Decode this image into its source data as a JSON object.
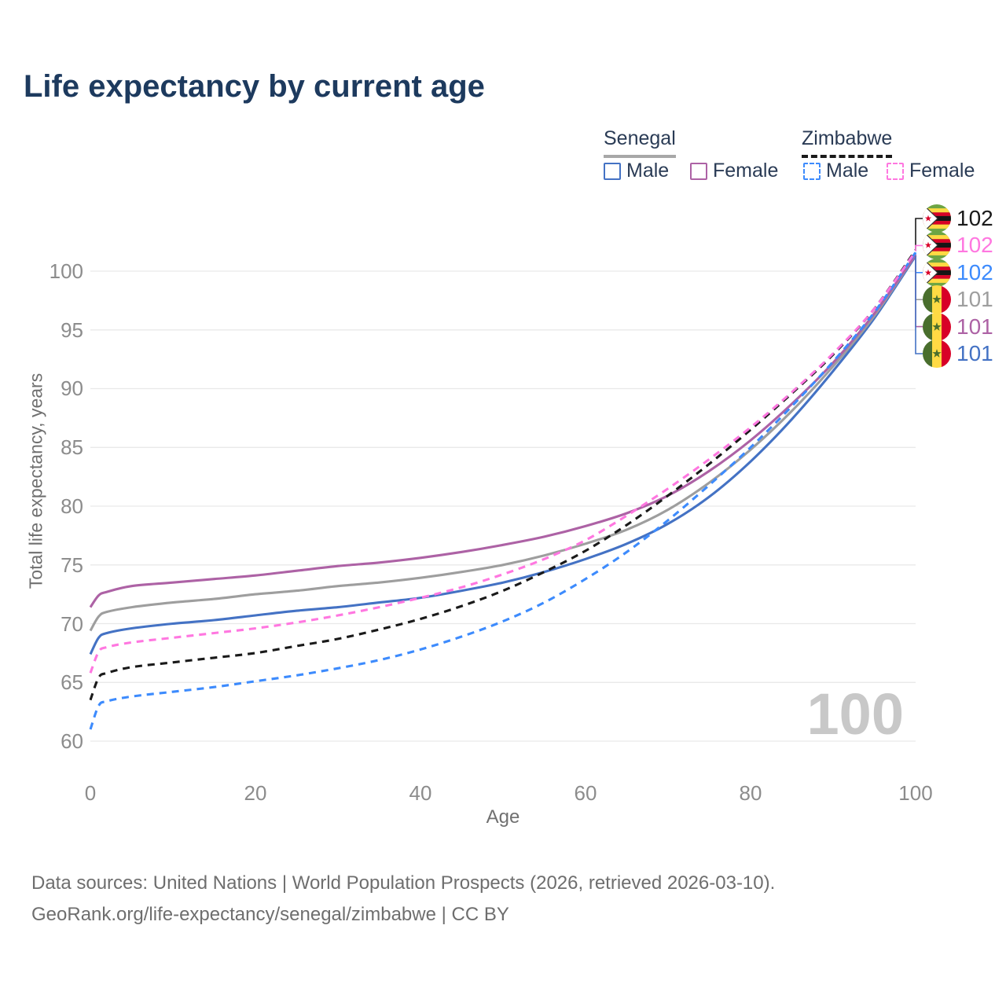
{
  "title": "Life expectancy by current age",
  "legend": {
    "groups": [
      {
        "name": "Senegal",
        "line_style": "solid",
        "items": [
          {
            "label": "Male",
            "color": "#4472c4"
          },
          {
            "label": "Female",
            "color": "#ad62a5"
          }
        ]
      },
      {
        "name": "Zimbabwe",
        "line_style": "dashed",
        "items": [
          {
            "label": "Male",
            "color": "#3d8bfd"
          },
          {
            "label": "Female",
            "color": "#ff77e0"
          }
        ]
      }
    ]
  },
  "watermark": "100",
  "end_labels": [
    {
      "value": "102",
      "color": "#1a1a1a",
      "flag": "zimbabwe"
    },
    {
      "value": "102",
      "color": "#ff77e0",
      "flag": "zimbabwe"
    },
    {
      "value": "102",
      "color": "#3d8bfd",
      "flag": "zimbabwe"
    },
    {
      "value": "101",
      "color": "#9e9e9e",
      "flag": "senegal"
    },
    {
      "value": "101",
      "color": "#ad62a5",
      "flag": "senegal"
    },
    {
      "value": "101",
      "color": "#4472c4",
      "flag": "senegal"
    }
  ],
  "footer": {
    "line1": "Data sources: United Nations | World Population Prospects (2026, retrieved 2026-03-10).",
    "line2": "GeoRank.org/life-expectancy/senegal/zimbabwe | CC BY"
  },
  "chart_data": {
    "type": "line",
    "title": "Life expectancy by current age",
    "xlabel": "Age",
    "ylabel": "Total life expectancy, years",
    "xlim": [
      0,
      100
    ],
    "ylim": [
      60,
      100
    ],
    "grid": "horizontal",
    "legend_position": "top-right",
    "x_ticks": [
      0,
      20,
      40,
      60,
      80,
      100
    ],
    "y_ticks": [
      60,
      65,
      70,
      75,
      80,
      85,
      90,
      95,
      100
    ],
    "x": [
      0,
      1,
      2,
      5,
      10,
      15,
      20,
      25,
      30,
      35,
      40,
      45,
      50,
      55,
      60,
      65,
      70,
      75,
      80,
      85,
      90,
      95,
      100
    ],
    "series": [
      {
        "name": "Senegal Female",
        "country": "Senegal",
        "sex": "Female",
        "style": "solid",
        "color": "#ad62a5",
        "end_label": "101",
        "values": [
          71.4,
          72.4,
          72.7,
          73.2,
          73.5,
          73.8,
          74.1,
          74.5,
          74.9,
          75.2,
          75.6,
          76.1,
          76.7,
          77.4,
          78.3,
          79.4,
          80.9,
          83.0,
          85.6,
          88.7,
          92.2,
          96.4,
          101.4
        ]
      },
      {
        "name": "Senegal Both sexes",
        "country": "Senegal",
        "sex": "Both",
        "style": "solid",
        "color": "#9e9e9e",
        "end_label": "101",
        "values": [
          69.4,
          70.6,
          71.0,
          71.4,
          71.8,
          72.1,
          72.5,
          72.8,
          73.2,
          73.5,
          73.9,
          74.4,
          75.0,
          75.8,
          76.8,
          78.0,
          79.7,
          82.0,
          84.8,
          88.1,
          91.9,
          96.2,
          101.4
        ]
      },
      {
        "name": "Senegal Male",
        "country": "Senegal",
        "sex": "Male",
        "style": "solid",
        "color": "#4472c4",
        "end_label": "101",
        "values": [
          67.4,
          68.8,
          69.2,
          69.6,
          70.0,
          70.3,
          70.7,
          71.1,
          71.4,
          71.8,
          72.2,
          72.8,
          73.5,
          74.4,
          75.5,
          76.8,
          78.5,
          80.8,
          83.8,
          87.4,
          91.5,
          96.0,
          101.3
        ]
      },
      {
        "name": "Zimbabwe Female",
        "country": "Zimbabwe",
        "sex": "Female",
        "style": "dashed",
        "color": "#ff77e0",
        "end_label": "102",
        "values": [
          65.8,
          67.6,
          68.0,
          68.4,
          68.8,
          69.2,
          69.6,
          70.1,
          70.7,
          71.4,
          72.2,
          73.1,
          74.2,
          75.5,
          77.1,
          79.2,
          81.5,
          84.0,
          86.7,
          89.7,
          93.0,
          96.8,
          101.7
        ]
      },
      {
        "name": "Zimbabwe Both sexes",
        "country": "Zimbabwe",
        "sex": "Both",
        "style": "dashed",
        "color": "#1a1a1a",
        "end_label": "102",
        "values": [
          63.5,
          65.4,
          65.8,
          66.3,
          66.7,
          67.1,
          67.5,
          68.1,
          68.7,
          69.5,
          70.4,
          71.5,
          72.8,
          74.4,
          76.2,
          78.4,
          80.9,
          83.6,
          86.5,
          89.6,
          92.9,
          96.8,
          101.8
        ]
      },
      {
        "name": "Zimbabwe Male",
        "country": "Zimbabwe",
        "sex": "Male",
        "style": "dashed",
        "color": "#3d8bfd",
        "end_label": "102",
        "values": [
          61.0,
          63.0,
          63.4,
          63.8,
          64.2,
          64.6,
          65.1,
          65.6,
          66.2,
          66.9,
          67.8,
          68.9,
          70.2,
          71.8,
          73.8,
          76.1,
          78.8,
          81.8,
          85.0,
          88.5,
          92.3,
          96.5,
          101.6
        ]
      }
    ]
  }
}
